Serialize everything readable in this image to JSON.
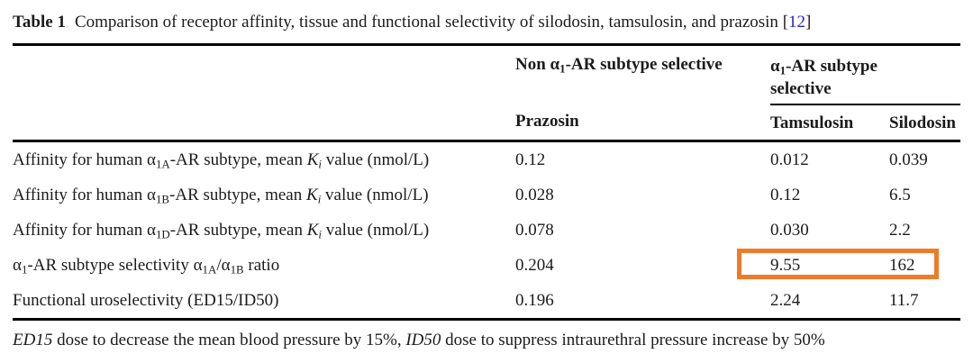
{
  "caption": {
    "label": "Table 1",
    "text": "Comparison of receptor affinity, tissue and functional selectivity of silodosin, tamsulosin, and prazosin ",
    "ref_open": "[",
    "ref_number": "12",
    "ref_close": "]"
  },
  "header": {
    "group_non_selective": "Non α~1~-AR subtype selective",
    "group_selective": "α~1~-AR subtype selective",
    "drug_prazosin": "Prazosin",
    "drug_tamsulosin": "Tamsulosin",
    "drug_silodosin": "Silodosin"
  },
  "rows": [
    {
      "label": "Affinity for human α~1A~-AR subtype, mean *K~i~* value (nmol/L)",
      "values": [
        "0.12",
        "0.012",
        "0.039"
      ],
      "highlight": false
    },
    {
      "label": "Affinity for human α~1B~-AR subtype, mean *K~i~* value (nmol/L)",
      "values": [
        "0.028",
        "0.12",
        "6.5"
      ],
      "highlight": false
    },
    {
      "label": "Affinity for human α~1D~-AR subtype, mean *K~i~* value (nmol/L)",
      "values": [
        "0.078",
        "0.030",
        "2.2"
      ],
      "highlight": false
    },
    {
      "label": "α~1~-AR subtype selectivity α~1A~/α~1B~ ratio",
      "values": [
        "0.204",
        "9.55",
        "162"
      ],
      "highlight": true
    },
    {
      "label": "Functional uroselectivity (ED15/ID50)",
      "values": [
        "0.196",
        "2.24",
        "11.7"
      ],
      "highlight": false
    }
  ],
  "footnote": "*ED15* dose to decrease the mean blood pressure by 15%, *ID50*  dose to suppress intraurethral pressure increase by 50%",
  "colors": {
    "highlight_box": "#ee7b28",
    "citation": "#2323d3",
    "text": "#1b1b1b",
    "rule": "#000000"
  }
}
